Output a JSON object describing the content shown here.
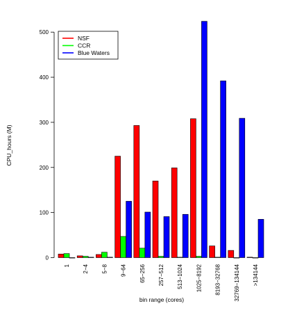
{
  "chart_data": {
    "type": "bar",
    "xlabel": "bin range (cores)",
    "ylabel": "CPU_hours (M)",
    "ylim": [
      0,
      540
    ],
    "yticks": [
      "0",
      "100",
      "200",
      "300",
      "400",
      "500"
    ],
    "ytick_values": [
      0,
      100,
      200,
      300,
      400,
      500
    ],
    "categories": [
      "1",
      "2−4",
      "5−8",
      "9−64",
      "65−256",
      "257−512",
      "513−1024",
      "1025−8192",
      "8193−32768",
      "32769−134144",
      ">134144"
    ],
    "series": [
      {
        "name": "NSF",
        "color": "#ff0000",
        "values": [
          8,
          4,
          7,
          225,
          293,
          170,
          199,
          308,
          26,
          16,
          1
        ]
      },
      {
        "name": "CCR",
        "color": "#00ff00",
        "values": [
          9,
          3,
          12,
          47,
          21,
          3,
          1,
          3,
          1,
          0,
          0
        ]
      },
      {
        "name": "Blue Waters",
        "color": "#0000ff",
        "values": [
          0,
          1,
          1,
          125,
          101,
          91,
          96,
          524,
          392,
          309,
          85
        ]
      }
    ],
    "legend": {
      "position": "top-left"
    },
    "grid": false
  }
}
